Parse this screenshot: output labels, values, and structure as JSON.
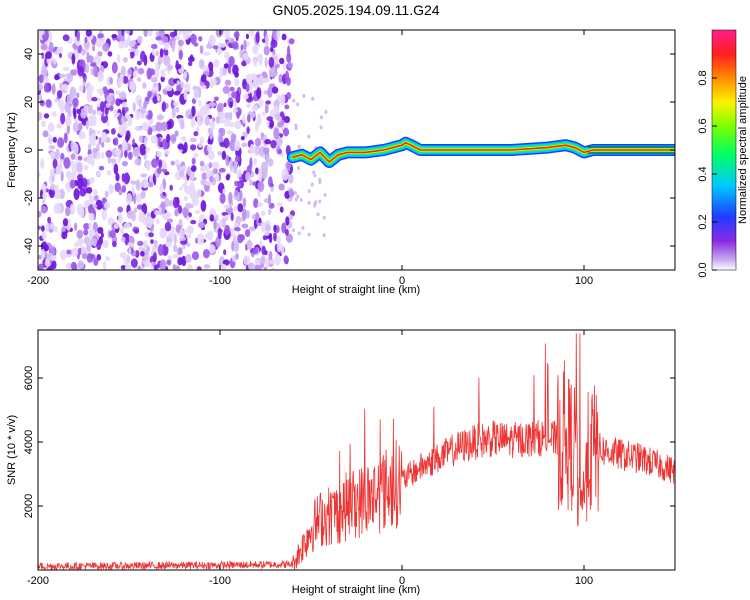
{
  "title": "GN05.2025.194.09.11.G24",
  "chart_data": [
    {
      "type": "heatmap",
      "xlabel": "Height of straight line (km)",
      "ylabel": "Frequency (Hz)",
      "xlim": [
        -200,
        150
      ],
      "ylim": [
        -50,
        50
      ],
      "x_ticks": [
        -200,
        -100,
        0,
        100
      ],
      "y_ticks": [
        -40,
        -20,
        0,
        20,
        40
      ],
      "colorbar": {
        "label": "Normalized spectral amplitude",
        "range": [
          0,
          1
        ],
        "ticks": [
          "0.0",
          "0.2",
          "0.4",
          "0.6",
          "0.8"
        ],
        "colormap": "rainbow (purple-blue-cyan-green-yellow-red-magenta)"
      },
      "noise_region_x": [
        -200,
        -60
      ],
      "signal_trace": {
        "x": [
          -60,
          -55,
          -50,
          -45,
          -40,
          -35,
          -30,
          -20,
          -10,
          0,
          2,
          5,
          10,
          20,
          40,
          60,
          80,
          90,
          95,
          100,
          105,
          120,
          150
        ],
        "frequency": [
          -3,
          -2,
          -4,
          -1,
          -5,
          -2,
          -1,
          -1,
          0,
          2,
          3,
          2,
          0,
          0,
          0,
          0,
          1,
          2,
          1,
          -1,
          0,
          0,
          0
        ]
      }
    },
    {
      "type": "line",
      "xlabel": "Height of straight line (km)",
      "ylabel": "SNR (10 * v/v)",
      "xlim": [
        -200,
        150
      ],
      "ylim": [
        0,
        7500
      ],
      "x_ticks": [
        -200,
        -100,
        0,
        100
      ],
      "y_ticks": [
        2000,
        4000,
        6000
      ],
      "color": "#ee3333",
      "x": [
        -200,
        -150,
        -100,
        -60,
        -55,
        -50,
        -45,
        -40,
        -35,
        -30,
        -20,
        -10,
        0,
        10,
        20,
        30,
        40,
        50,
        60,
        70,
        80,
        85,
        90,
        95,
        98,
        100,
        102,
        105,
        110,
        120,
        130,
        140,
        150
      ],
      "values": [
        120,
        130,
        150,
        180,
        700,
        1300,
        1600,
        1700,
        1800,
        2000,
        2200,
        2500,
        2800,
        3200,
        3500,
        3800,
        4000,
        4100,
        4050,
        4100,
        4150,
        4050,
        4000,
        3900,
        1500,
        2500,
        3600,
        3800,
        3750,
        3600,
        3500,
        3300,
        3100
      ]
    }
  ]
}
